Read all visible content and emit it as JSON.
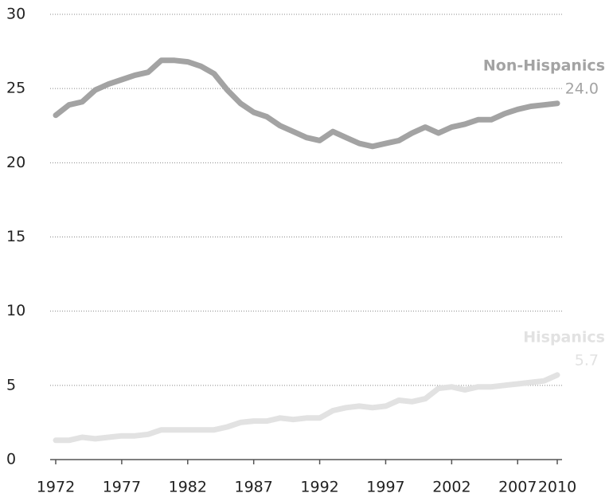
{
  "chart_data": {
    "type": "line",
    "x": [
      1972,
      1973,
      1974,
      1975,
      1976,
      1977,
      1978,
      1979,
      1980,
      1981,
      1982,
      1983,
      1984,
      1985,
      1986,
      1987,
      1988,
      1989,
      1990,
      1991,
      1992,
      1993,
      1994,
      1995,
      1996,
      1997,
      1998,
      1999,
      2000,
      2001,
      2002,
      2003,
      2004,
      2005,
      2006,
      2007,
      2008,
      2009,
      2010
    ],
    "series": [
      {
        "name": "Non-Hispanics",
        "color": "#a3a3a3",
        "values": [
          23.2,
          23.9,
          24.1,
          24.9,
          25.3,
          25.6,
          25.9,
          26.1,
          26.9,
          26.9,
          26.8,
          26.5,
          26.0,
          24.9,
          24.0,
          23.4,
          23.1,
          22.5,
          22.1,
          21.7,
          21.5,
          22.1,
          21.7,
          21.3,
          21.1,
          21.3,
          21.5,
          22.0,
          22.4,
          22.0,
          22.4,
          22.6,
          22.9,
          22.9,
          23.3,
          23.6,
          23.8,
          23.9,
          24.0
        ],
        "value_labels": [
          null,
          null,
          null,
          null,
          null,
          null,
          null,
          null,
          null,
          null,
          null,
          null,
          null,
          null,
          null,
          null,
          null,
          null,
          null,
          null,
          null,
          null,
          null,
          null,
          null,
          null,
          null,
          null,
          null,
          null,
          null,
          null,
          null,
          null,
          null,
          null,
          null,
          null,
          "24.0"
        ]
      },
      {
        "name": "Hispanics",
        "color": "#e2e2e2",
        "values": [
          1.3,
          1.3,
          1.5,
          1.4,
          1.5,
          1.6,
          1.6,
          1.7,
          2.0,
          2.0,
          2.0,
          2.0,
          2.0,
          2.2,
          2.5,
          2.6,
          2.6,
          2.8,
          2.7,
          2.8,
          2.8,
          3.3,
          3.5,
          3.6,
          3.5,
          3.6,
          4.0,
          3.9,
          4.1,
          4.8,
          4.9,
          4.7,
          4.9,
          4.9,
          5.0,
          5.1,
          5.2,
          5.3,
          5.7
        ],
        "value_labels": [
          null,
          null,
          null,
          null,
          null,
          null,
          null,
          null,
          null,
          null,
          null,
          null,
          null,
          null,
          null,
          null,
          null,
          null,
          null,
          null,
          null,
          null,
          null,
          null,
          null,
          null,
          null,
          null,
          null,
          null,
          null,
          null,
          null,
          null,
          null,
          null,
          null,
          null,
          "5.7"
        ]
      }
    ],
    "xlim": [
      1972,
      2010
    ],
    "xticks": [
      1972,
      1977,
      1982,
      1987,
      1992,
      1997,
      2002,
      2007,
      2010
    ],
    "ylim": [
      0,
      30
    ],
    "yticks": [
      0,
      5,
      10,
      15,
      20,
      25,
      30
    ],
    "grid": true
  }
}
